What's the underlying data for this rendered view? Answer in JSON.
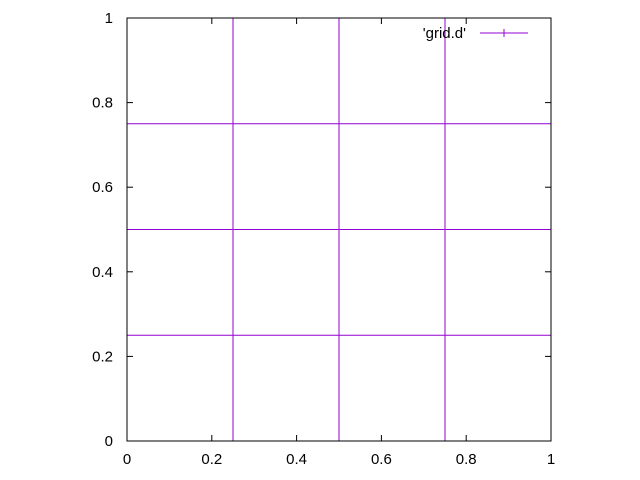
{
  "chart_data": {
    "type": "line",
    "title": "",
    "xlabel": "",
    "ylabel": "",
    "xlim": [
      0,
      1
    ],
    "ylim": [
      0,
      1
    ],
    "grid": false,
    "legend_position": "top-right",
    "x_ticks": [
      {
        "value": 0,
        "label": "0"
      },
      {
        "value": 0.2,
        "label": "0.2"
      },
      {
        "value": 0.4,
        "label": "0.4"
      },
      {
        "value": 0.6,
        "label": "0.6"
      },
      {
        "value": 0.8,
        "label": "0.8"
      },
      {
        "value": 1,
        "label": "1"
      }
    ],
    "y_ticks": [
      {
        "value": 0,
        "label": "0"
      },
      {
        "value": 0.2,
        "label": "0.2"
      },
      {
        "value": 0.4,
        "label": "0.4"
      },
      {
        "value": 0.6,
        "label": "0.6"
      },
      {
        "value": 0.8,
        "label": "0.8"
      },
      {
        "value": 1,
        "label": "1"
      }
    ],
    "series": [
      {
        "name": "'grid.d'",
        "color": "#9400d3",
        "segments": [
          [
            [
              0.25,
              0
            ],
            [
              0.25,
              1
            ]
          ],
          [
            [
              0.5,
              0
            ],
            [
              0.5,
              1
            ]
          ],
          [
            [
              0.75,
              0
            ],
            [
              0.75,
              1
            ]
          ],
          [
            [
              0,
              0.25
            ],
            [
              1,
              0.25
            ]
          ],
          [
            [
              0,
              0.5
            ],
            [
              1,
              0.5
            ]
          ],
          [
            [
              0,
              0.75
            ],
            [
              1,
              0.75
            ]
          ]
        ]
      }
    ]
  }
}
